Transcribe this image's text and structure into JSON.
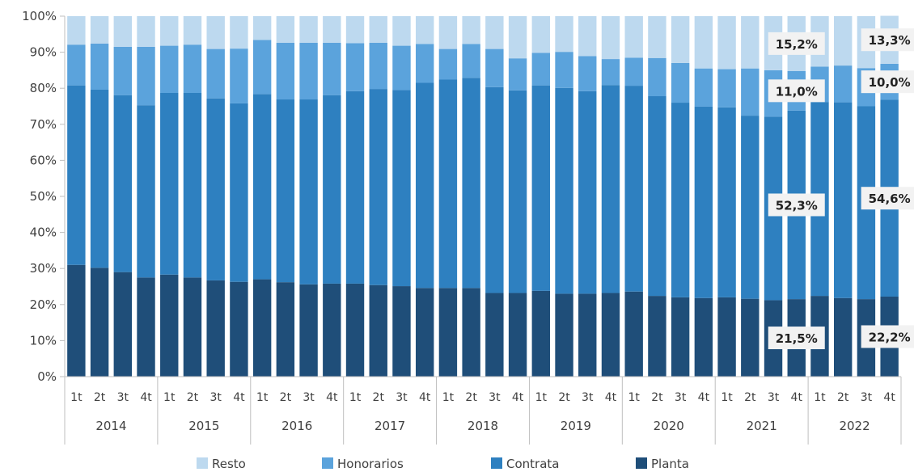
{
  "chart_data": {
    "type": "stacked-bar-100",
    "title": "",
    "xlabel": "",
    "ylabel": "",
    "ylim": [
      0,
      100
    ],
    "yticks": [
      "0%",
      "10%",
      "20%",
      "30%",
      "40%",
      "50%",
      "60%",
      "70%",
      "80%",
      "90%",
      "100%"
    ],
    "years": [
      "2014",
      "2015",
      "2016",
      "2017",
      "2018",
      "2019",
      "2020",
      "2021",
      "2022"
    ],
    "quarters": [
      "1t",
      "2t",
      "3t",
      "4t"
    ],
    "legend_position": "bottom",
    "series": [
      {
        "name": "Planta",
        "color": "#1f4e79",
        "values": [
          31.0,
          30.2,
          29.0,
          27.5,
          28.3,
          27.5,
          26.7,
          26.3,
          27.0,
          26.2,
          25.6,
          25.8,
          25.8,
          25.4,
          25.1,
          24.6,
          24.6,
          24.6,
          23.2,
          23.2,
          23.8,
          23.0,
          23.0,
          23.2,
          23.6,
          22.4,
          22.0,
          21.8,
          22.0,
          21.6,
          21.2,
          21.5,
          22.4,
          21.8,
          21.5,
          22.2
        ]
      },
      {
        "name": "Contrata",
        "color": "#2e80c0",
        "values": [
          49.8,
          49.4,
          49.1,
          47.8,
          50.4,
          51.2,
          50.5,
          49.5,
          51.4,
          50.7,
          51.3,
          52.3,
          53.4,
          54.4,
          54.4,
          56.9,
          57.8,
          58.3,
          57.1,
          56.2,
          57.0,
          57.1,
          56.2,
          57.7,
          57.1,
          55.4,
          54.0,
          53.1,
          52.7,
          50.8,
          50.9,
          52.3,
          53.8,
          54.3,
          53.5,
          54.6
        ]
      },
      {
        "name": "Honorarios",
        "color": "#5ba3dc",
        "values": [
          11.3,
          12.8,
          13.4,
          16.2,
          13.1,
          13.4,
          13.7,
          15.2,
          15.0,
          15.7,
          15.7,
          14.5,
          13.3,
          12.8,
          12.3,
          10.8,
          8.5,
          9.4,
          10.6,
          8.9,
          9.0,
          10.0,
          9.7,
          7.2,
          7.8,
          10.6,
          11.0,
          10.6,
          10.6,
          13.1,
          12.9,
          11.0,
          9.8,
          10.2,
          10.6,
          10.0
        ]
      },
      {
        "name": "Resto",
        "color": "#bdd9ef",
        "values": [
          7.9,
          7.6,
          8.5,
          8.5,
          8.2,
          7.9,
          9.1,
          9.0,
          6.6,
          7.4,
          7.4,
          7.4,
          7.5,
          7.4,
          8.2,
          7.7,
          9.1,
          7.7,
          9.1,
          11.7,
          10.2,
          9.9,
          11.1,
          11.9,
          11.5,
          11.6,
          13.0,
          14.5,
          14.7,
          14.5,
          15.0,
          15.2,
          14.0,
          13.7,
          14.4,
          13.3
        ]
      }
    ],
    "annotations": [
      {
        "bar_index": 31,
        "series": "Planta",
        "text": "21,5%"
      },
      {
        "bar_index": 31,
        "series": "Contrata",
        "text": "52,3%"
      },
      {
        "bar_index": 31,
        "series": "Honorarios",
        "text": "11,0%"
      },
      {
        "bar_index": 31,
        "series": "Resto",
        "text": "15,2%"
      },
      {
        "bar_index": 35,
        "series": "Planta",
        "text": "22,2%"
      },
      {
        "bar_index": 35,
        "series": "Contrata",
        "text": "54,6%"
      },
      {
        "bar_index": 35,
        "series": "Honorarios",
        "text": "10,0%"
      },
      {
        "bar_index": 35,
        "series": "Resto",
        "text": "13,3%"
      }
    ],
    "legend": [
      "Resto",
      "Honorarios",
      "Contrata",
      "Planta"
    ]
  }
}
